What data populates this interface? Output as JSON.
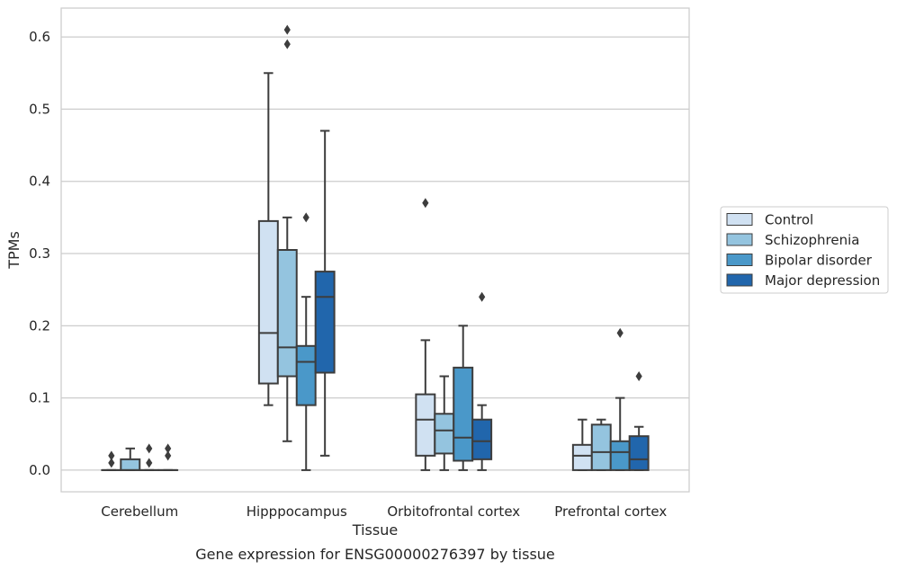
{
  "caption": "Gene expression for ENSG00000276397 by tissue",
  "chart_data": {
    "type": "box",
    "title": "",
    "xlabel": "Tissue",
    "ylabel": "TPMs",
    "ylim": [
      -0.03,
      0.64
    ],
    "yticks": [
      0.0,
      0.1,
      0.2,
      0.3,
      0.4,
      0.5,
      0.6
    ],
    "ytick_labels": [
      "0.0",
      "0.1",
      "0.2",
      "0.3",
      "0.4",
      "0.5",
      "0.6"
    ],
    "grid": "horizontal",
    "legend_position": "right",
    "categories": [
      "Cerebellum",
      "Hipppocampus",
      "Orbitofrontal cortex",
      "Prefrontal cortex"
    ],
    "series": [
      {
        "name": "Control",
        "color": "#d0e1f2",
        "boxes": [
          {
            "q1": 0.0,
            "median": 0.0,
            "q3": 0.0,
            "whislo": 0.0,
            "whishi": 0.0,
            "fliers": [
              0.01,
              0.02
            ]
          },
          {
            "q1": 0.12,
            "median": 0.19,
            "q3": 0.345,
            "whislo": 0.09,
            "whishi": 0.55,
            "fliers": []
          },
          {
            "q1": 0.02,
            "median": 0.07,
            "q3": 0.105,
            "whislo": 0.0,
            "whishi": 0.18,
            "fliers": [
              0.37
            ]
          },
          {
            "q1": 0.0,
            "median": 0.02,
            "q3": 0.035,
            "whislo": 0.0,
            "whishi": 0.07,
            "fliers": []
          }
        ]
      },
      {
        "name": "Schizophrenia",
        "color": "#94c4df",
        "boxes": [
          {
            "q1": 0.0,
            "median": 0.0,
            "q3": 0.015,
            "whislo": 0.0,
            "whishi": 0.03,
            "fliers": []
          },
          {
            "q1": 0.13,
            "median": 0.17,
            "q3": 0.305,
            "whislo": 0.04,
            "whishi": 0.35,
            "fliers": [
              0.59,
              0.61
            ]
          },
          {
            "q1": 0.023,
            "median": 0.055,
            "q3": 0.078,
            "whislo": 0.0,
            "whishi": 0.13,
            "fliers": []
          },
          {
            "q1": 0.0,
            "median": 0.025,
            "q3": 0.063,
            "whislo": 0.0,
            "whishi": 0.07,
            "fliers": []
          }
        ]
      },
      {
        "name": "Bipolar disorder",
        "color": "#4a98c9",
        "boxes": [
          {
            "q1": 0.0,
            "median": 0.0,
            "q3": 0.0,
            "whislo": 0.0,
            "whishi": 0.0,
            "fliers": [
              0.01,
              0.03
            ]
          },
          {
            "q1": 0.09,
            "median": 0.15,
            "q3": 0.172,
            "whislo": 0.0,
            "whishi": 0.24,
            "fliers": [
              0.35
            ]
          },
          {
            "q1": 0.013,
            "median": 0.045,
            "q3": 0.142,
            "whislo": 0.0,
            "whishi": 0.2,
            "fliers": []
          },
          {
            "q1": 0.0,
            "median": 0.025,
            "q3": 0.04,
            "whislo": 0.0,
            "whishi": 0.1,
            "fliers": [
              0.19
            ]
          }
        ]
      },
      {
        "name": "Major depression",
        "color": "#2166ac",
        "boxes": [
          {
            "q1": 0.0,
            "median": 0.0,
            "q3": 0.0,
            "whislo": 0.0,
            "whishi": 0.0,
            "fliers": [
              0.02,
              0.03
            ]
          },
          {
            "q1": 0.135,
            "median": 0.24,
            "q3": 0.275,
            "whislo": 0.02,
            "whishi": 0.47,
            "fliers": []
          },
          {
            "q1": 0.015,
            "median": 0.04,
            "q3": 0.07,
            "whislo": 0.0,
            "whishi": 0.09,
            "fliers": [
              0.24
            ]
          },
          {
            "q1": 0.0,
            "median": 0.015,
            "q3": 0.047,
            "whislo": 0.0,
            "whishi": 0.06,
            "fliers": [
              0.13
            ]
          }
        ]
      }
    ]
  }
}
